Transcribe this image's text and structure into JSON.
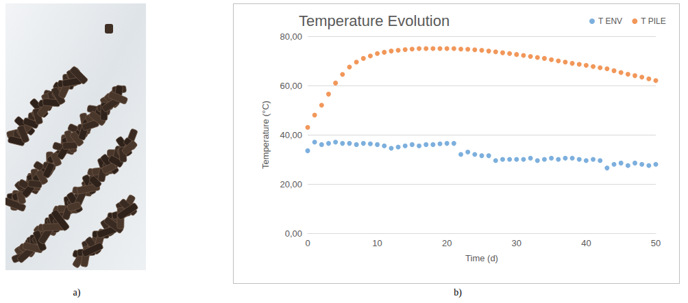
{
  "panel_labels": [
    "a)",
    "b)"
  ],
  "chart_data": {
    "type": "scatter",
    "title": "Temperature Evolution",
    "x_label": "Time (d)",
    "y_label": "Temperature (°C)",
    "x": [
      0,
      1,
      2,
      3,
      4,
      5,
      6,
      7,
      8,
      9,
      10,
      11,
      12,
      13,
      14,
      15,
      16,
      17,
      18,
      19,
      20,
      21,
      22,
      23,
      24,
      25,
      26,
      27,
      28,
      29,
      30,
      31,
      32,
      33,
      34,
      35,
      36,
      37,
      38,
      39,
      40,
      41,
      42,
      43,
      44,
      45,
      46,
      47,
      48,
      49,
      50
    ],
    "series": [
      {
        "name": "T ENV",
        "color": "#5b9bd5",
        "marker": "circle",
        "values": [
          33.5,
          37,
          36,
          36.5,
          37,
          36.5,
          36.5,
          36,
          36.5,
          36.3,
          36,
          35.5,
          34.5,
          35,
          35.5,
          36,
          35.5,
          36,
          36,
          36.3,
          36.5,
          36.5,
          32,
          33,
          32,
          31.5,
          31.5,
          29.5,
          30,
          30,
          30,
          30,
          30.5,
          29.5,
          30,
          30.5,
          30,
          30.5,
          30.5,
          30,
          29.5,
          30,
          29.5,
          26.5,
          28,
          28.5,
          27.5,
          28.5,
          28,
          27.5,
          28
        ]
      },
      {
        "name": "T PILE",
        "color": "#ed7d31",
        "marker": "circle",
        "values": [
          43,
          48,
          52,
          56.5,
          61,
          64.5,
          67.5,
          69.5,
          71,
          72,
          73,
          73.5,
          74,
          74.3,
          74.6,
          74.8,
          75,
          75,
          75,
          75,
          75,
          75,
          74.8,
          74.7,
          74.5,
          74.3,
          74,
          73.7,
          73.3,
          73,
          72.6,
          72.2,
          71.8,
          71.4,
          71,
          70.5,
          70,
          69.5,
          69,
          68.6,
          68.2,
          67.7,
          67.2,
          66.8,
          66,
          65.3,
          64.6,
          64,
          63.4,
          62.7,
          62
        ]
      }
    ],
    "xlim": [
      0,
      50
    ],
    "xticks": [
      0,
      10,
      20,
      30,
      40,
      50
    ],
    "ylim": [
      0,
      80
    ],
    "yticks": [
      {
        "value": 0,
        "label": "0,00"
      },
      {
        "value": 20,
        "label": "20,00"
      },
      {
        "value": 40,
        "label": "40,00"
      },
      {
        "value": 60,
        "label": "60,00"
      },
      {
        "value": 80,
        "label": "80,00"
      }
    ],
    "grid": true,
    "legend": "top-right"
  }
}
